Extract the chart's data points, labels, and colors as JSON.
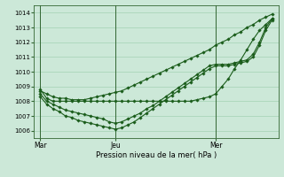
{
  "background_color": "#cce8d8",
  "grid_color": "#99ccaa",
  "line_color": "#1a5c1a",
  "marker_color": "#1a5c1a",
  "xlabel": "Pression niveau de la mer( hPa )",
  "ylim": [
    1005.5,
    1014.5
  ],
  "yticks": [
    1006,
    1007,
    1008,
    1009,
    1010,
    1011,
    1012,
    1013,
    1014
  ],
  "xtick_labels": [
    "Mar",
    "Jeu",
    "Mer"
  ],
  "xtick_pos": [
    0,
    12,
    28
  ],
  "vline_pos": [
    0,
    12,
    28
  ],
  "xlim": [
    -1,
    38
  ],
  "series_flat": [
    1008.8,
    1008.2,
    1008.0,
    1008.0,
    1008.0,
    1008.0,
    1008.0,
    1008.0,
    1008.0,
    1008.0,
    1008.0,
    1008.0,
    1008.0,
    1008.0,
    1008.0,
    1008.0,
    1008.0,
    1008.0,
    1008.0,
    1008.0,
    1008.0,
    1008.0,
    1008.0,
    1008.0,
    1008.0,
    1008.1,
    1008.2,
    1008.3,
    1008.5,
    1009.0,
    1009.5,
    1010.2,
    1010.8,
    1011.5,
    1012.2,
    1012.8,
    1013.2,
    1013.6
  ],
  "series_diagonal": [
    1008.7,
    1008.5,
    1008.3,
    1008.2,
    1008.2,
    1008.1,
    1008.1,
    1008.1,
    1008.2,
    1008.3,
    1008.4,
    1008.5,
    1008.6,
    1008.7,
    1008.9,
    1009.1,
    1009.3,
    1009.5,
    1009.7,
    1009.9,
    1010.1,
    1010.3,
    1010.5,
    1010.7,
    1010.9,
    1011.1,
    1011.3,
    1011.5,
    1011.8,
    1012.0,
    1012.2,
    1012.5,
    1012.7,
    1013.0,
    1013.2,
    1013.5,
    1013.7,
    1013.9
  ],
  "series_dip1": [
    1008.5,
    1008.0,
    1007.8,
    1007.6,
    1007.4,
    1007.3,
    1007.2,
    1007.1,
    1007.0,
    1006.9,
    1006.8,
    1006.6,
    1006.5,
    1006.6,
    1006.8,
    1007.0,
    1007.2,
    1007.5,
    1007.7,
    1008.0,
    1008.3,
    1008.6,
    1008.9,
    1009.2,
    1009.5,
    1009.8,
    1010.1,
    1010.4,
    1010.5,
    1010.5,
    1010.5,
    1010.6,
    1010.7,
    1010.8,
    1011.2,
    1012.0,
    1013.0,
    1013.6
  ],
  "series_dip2": [
    1008.3,
    1007.8,
    1007.5,
    1007.3,
    1007.0,
    1006.9,
    1006.7,
    1006.6,
    1006.5,
    1006.4,
    1006.3,
    1006.2,
    1006.1,
    1006.2,
    1006.4,
    1006.6,
    1006.9,
    1007.2,
    1007.5,
    1007.8,
    1008.1,
    1008.4,
    1008.7,
    1009.0,
    1009.3,
    1009.6,
    1009.9,
    1010.2,
    1010.4,
    1010.4,
    1010.4,
    1010.5,
    1010.6,
    1010.7,
    1011.0,
    1011.8,
    1012.8,
    1013.5
  ],
  "n_points": 38
}
